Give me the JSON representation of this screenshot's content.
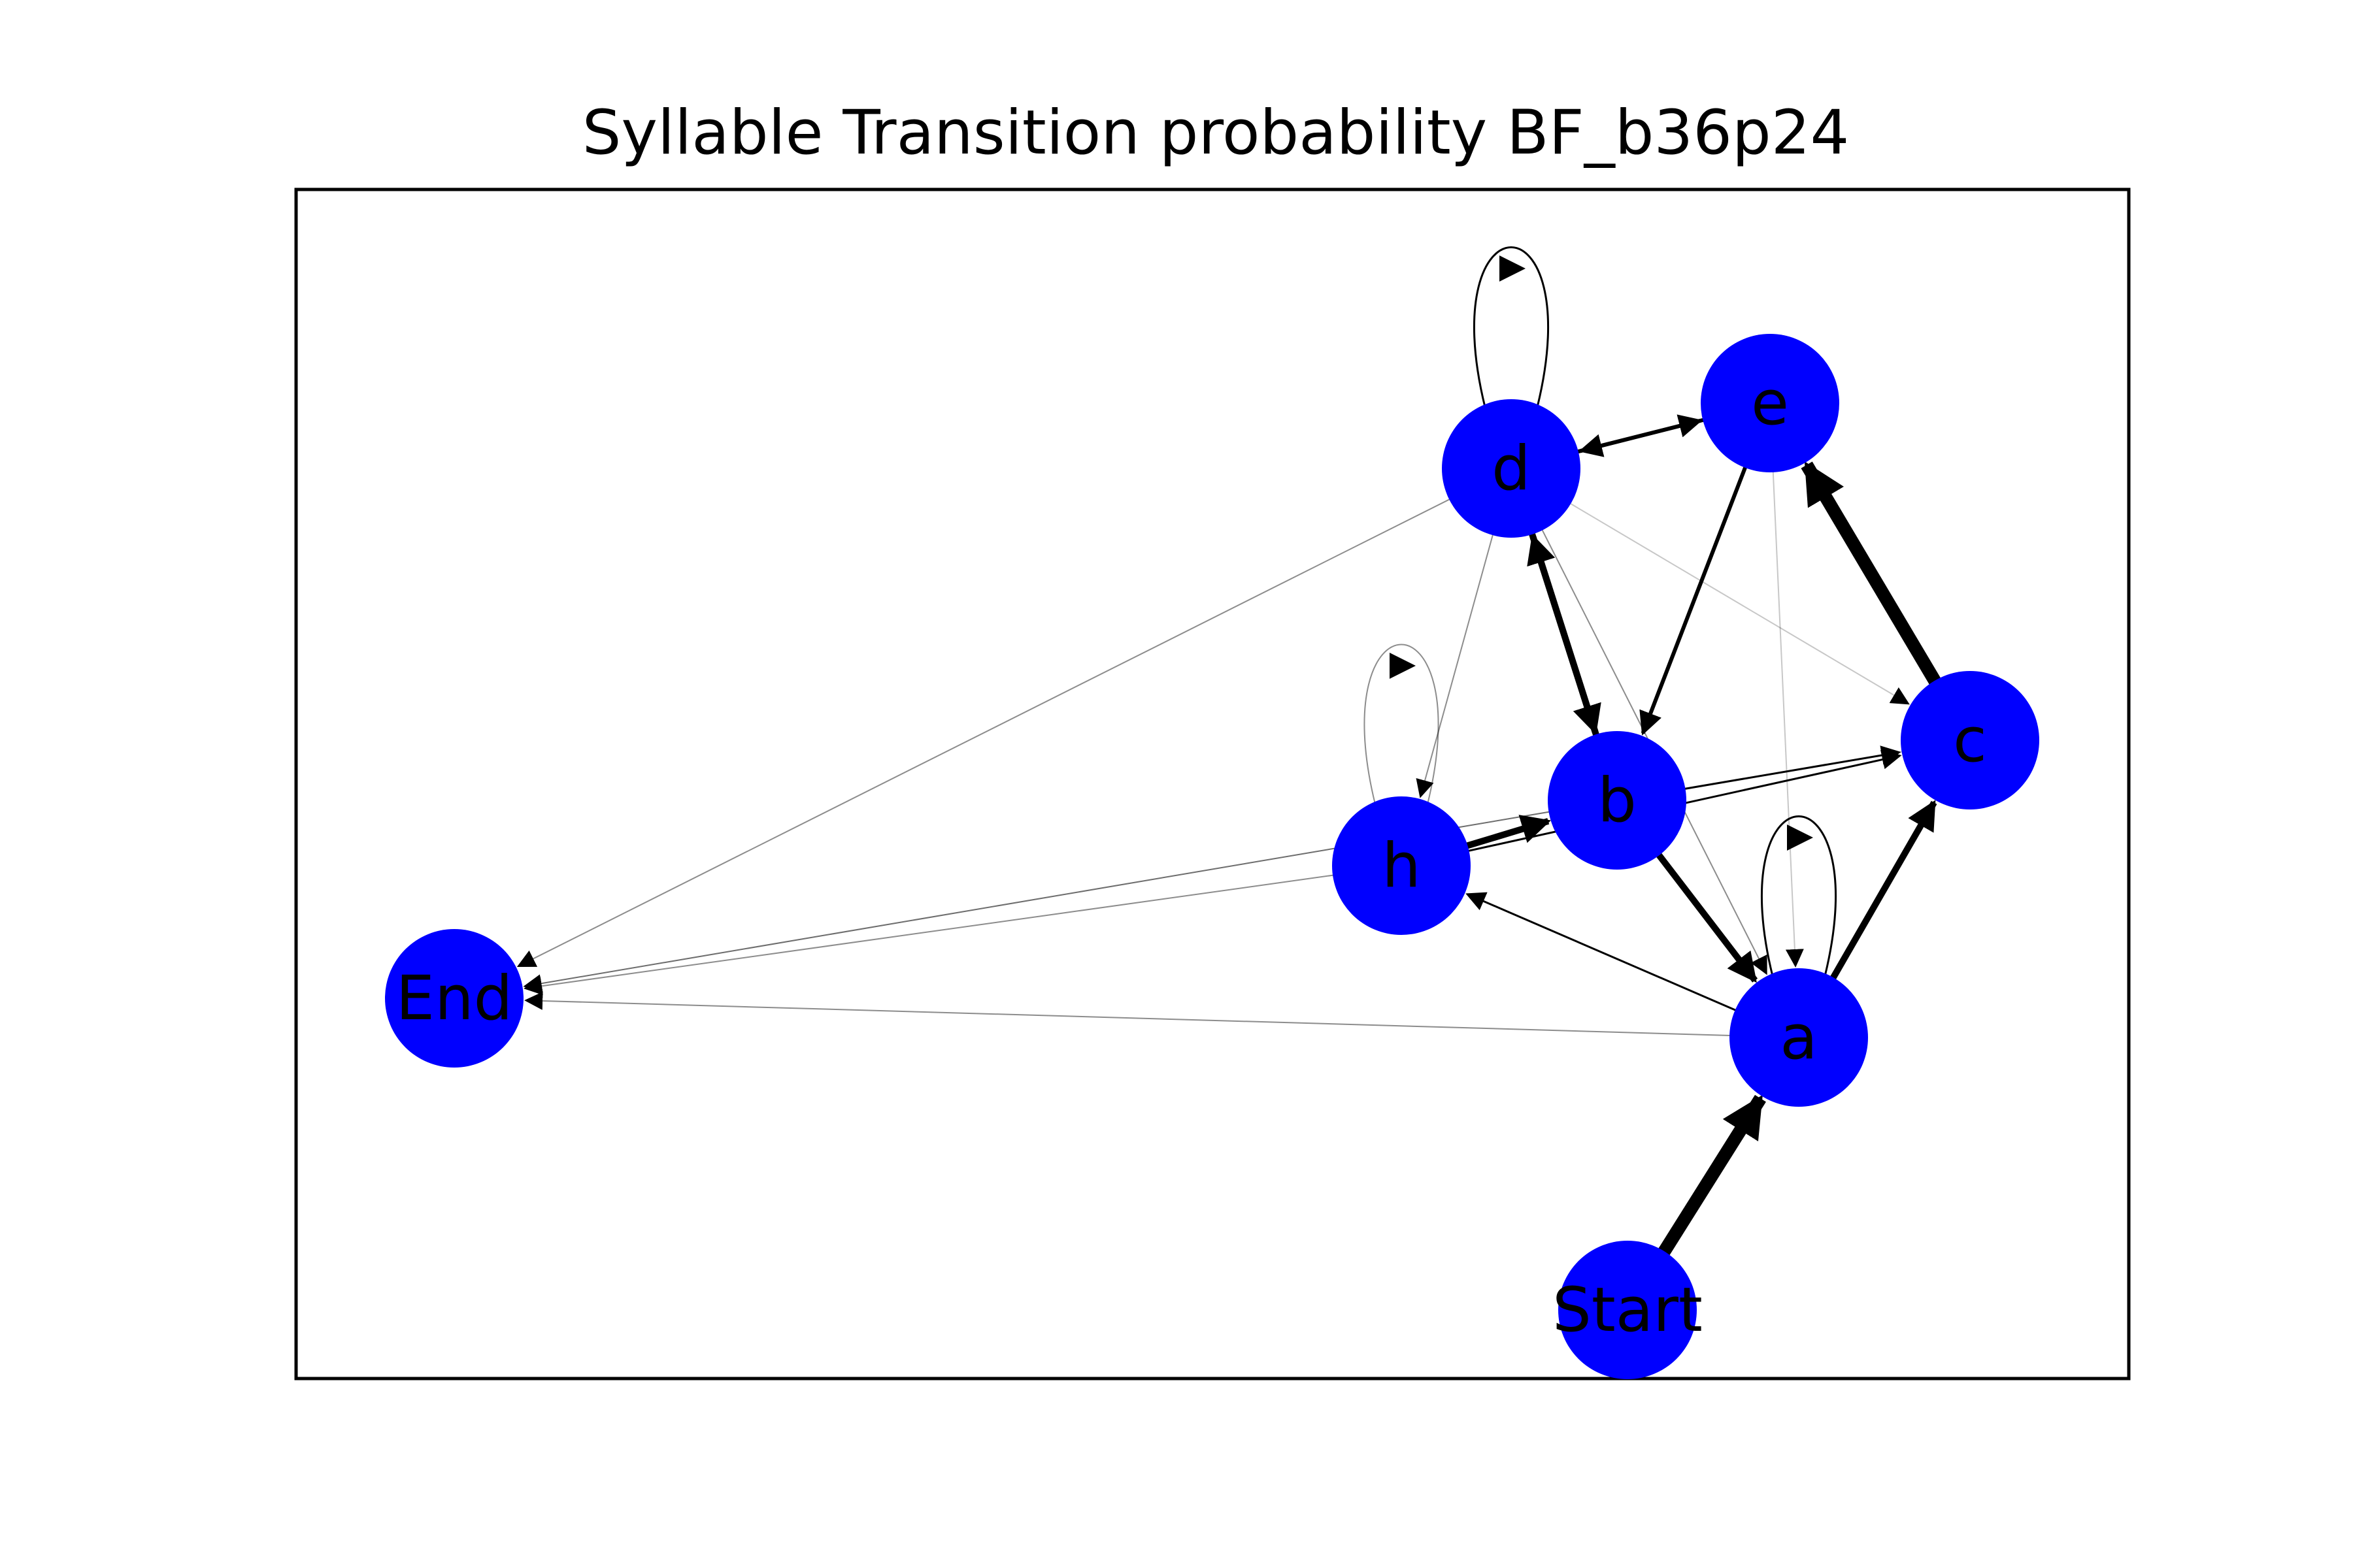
{
  "title": "Syllable Transition probability BF_b36p24",
  "colors": {
    "node_fill": "#0000ff",
    "edge": "#000000",
    "frame": "#000000",
    "label": "#000000"
  },
  "nodes": [
    {
      "id": "d",
      "label": "d"
    },
    {
      "id": "e",
      "label": "e"
    },
    {
      "id": "c",
      "label": "c"
    },
    {
      "id": "b",
      "label": "b"
    },
    {
      "id": "h",
      "label": "h"
    },
    {
      "id": "a",
      "label": "a"
    },
    {
      "id": "End",
      "label": "End"
    },
    {
      "id": "Start",
      "label": "Start"
    }
  ],
  "edges": [
    {
      "from": "Start",
      "to": "a",
      "weight": "very-heavy"
    },
    {
      "from": "c",
      "to": "e",
      "weight": "very-heavy"
    },
    {
      "from": "a",
      "to": "c",
      "weight": "heavy"
    },
    {
      "from": "b",
      "to": "a",
      "weight": "heavy"
    },
    {
      "from": "d",
      "to": "b",
      "weight": "heavy"
    },
    {
      "from": "b",
      "to": "d",
      "weight": "heavy"
    },
    {
      "from": "h",
      "to": "b",
      "weight": "heavy"
    },
    {
      "from": "d",
      "to": "e",
      "weight": "medium"
    },
    {
      "from": "e",
      "to": "d",
      "weight": "medium"
    },
    {
      "from": "e",
      "to": "b",
      "weight": "medium"
    },
    {
      "from": "a",
      "to": "h",
      "weight": "light"
    },
    {
      "from": "b",
      "to": "c",
      "weight": "light"
    },
    {
      "from": "h",
      "to": "c",
      "weight": "light"
    },
    {
      "from": "d",
      "to": "d",
      "weight": "light"
    },
    {
      "from": "a",
      "to": "a",
      "weight": "light"
    },
    {
      "from": "h",
      "to": "h",
      "weight": "thin"
    },
    {
      "from": "d",
      "to": "End",
      "weight": "thin"
    },
    {
      "from": "h",
      "to": "End",
      "weight": "thin"
    },
    {
      "from": "b",
      "to": "End",
      "weight": "thin"
    },
    {
      "from": "a",
      "to": "End",
      "weight": "thin"
    },
    {
      "from": "d",
      "to": "h",
      "weight": "thin"
    },
    {
      "from": "d",
      "to": "a",
      "weight": "thin"
    },
    {
      "from": "d",
      "to": "c",
      "weight": "faint"
    },
    {
      "from": "e",
      "to": "a",
      "weight": "faint"
    },
    {
      "from": "c",
      "to": "End",
      "weight": "faint"
    }
  ]
}
